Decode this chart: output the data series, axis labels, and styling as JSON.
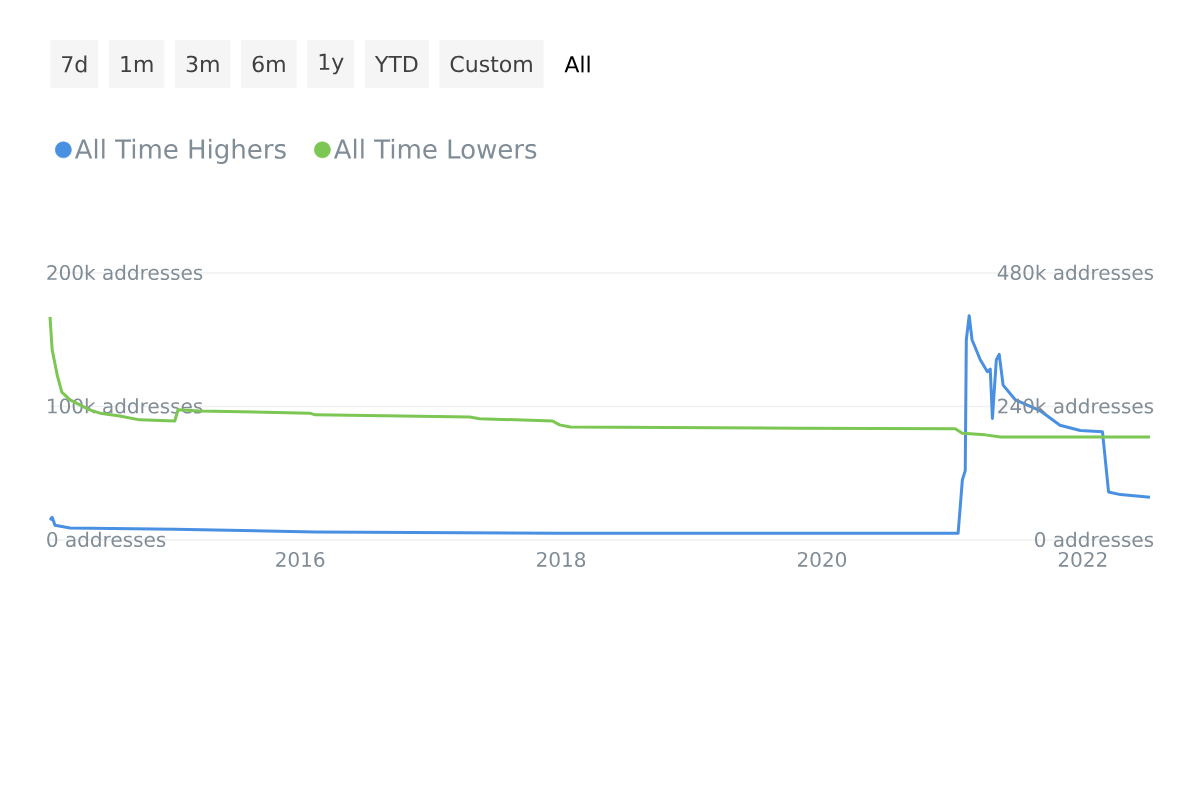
{
  "chart_data": {
    "type": "line",
    "annotations": [
      "7d",
      "1m",
      "3m",
      "6m",
      "1y",
      "YTD",
      "Custom",
      "All"
    ],
    "legend": "top left",
    "grid": "y",
    "xlim": [
      "2014-01-31",
      "2022-07-08"
    ],
    "xticks": [
      "2016",
      "2018",
      "2020",
      "2022"
    ],
    "ylim": [
      0,
      200000
    ],
    "yticks": [
      {
        "value": 0,
        "label": "0 addresses"
      },
      {
        "value": 100000,
        "label": "100k addresses"
      },
      {
        "value": 200000,
        "label": "200k addresses"
      }
    ],
    "y2lim": [
      0,
      480000
    ],
    "y2ticks": [
      {
        "value": 0,
        "label": "0 addresses"
      },
      {
        "value": 240000,
        "label": "240k addresses"
      },
      {
        "value": 480000,
        "label": "480k addresses"
      }
    ],
    "series": [
      {
        "name": "All Time Highers",
        "color": "#4a90e2",
        "x": [
          "2014-01-31",
          "2014-02-06",
          "2014-02-14",
          "2014-03-28",
          "2015-01-15",
          "2016-02-12",
          "2017-12-28",
          "2021-01-17",
          "2021-01-29",
          "2021-02-06",
          "2021-02-09",
          "2021-02-17",
          "2021-02-25",
          "2021-03-20",
          "2021-04-09",
          "2021-04-17",
          "2021-04-23",
          "2021-05-04",
          "2021-05-12",
          "2021-05-23",
          "2021-06-26",
          "2021-09-03",
          "2021-10-29",
          "2021-12-25",
          "2022-02-25",
          "2022-03-14",
          "2022-04-16",
          "2022-07-08"
        ],
        "values": [
          15000,
          17000,
          11000,
          9000,
          8000,
          6000,
          5000,
          5000,
          45000,
          52000,
          150000,
          168000,
          150000,
          135000,
          126000,
          128000,
          91000,
          135000,
          139000,
          116000,
          105000,
          97000,
          86000,
          82000,
          81000,
          36000,
          34000,
          32000
        ]
      },
      {
        "name": "All Time Lowers",
        "color": "#7cc653",
        "axis": "y2",
        "x": [
          "2014-01-31",
          "2014-02-06",
          "2014-02-20",
          "2014-03-05",
          "2014-03-28",
          "2014-05-22",
          "2014-06-20",
          "2014-08-14",
          "2014-10-09",
          "2015-01-15",
          "2015-01-24",
          "2015-03-26",
          "2016-01-28",
          "2016-02-12",
          "2017-04-20",
          "2017-05-18",
          "2017-12-08",
          "2017-12-28",
          "2018-01-27",
          "2019-11-01",
          "2021-01-09",
          "2021-01-29",
          "2021-04-03",
          "2021-05-15",
          "2022-07-08"
        ],
        "values": [
          401000,
          342000,
          297000,
          266000,
          252000,
          234000,
          228000,
          223000,
          216000,
          214000,
          234000,
          232000,
          228000,
          225000,
          221000,
          218000,
          214000,
          207000,
          203000,
          201000,
          200000,
          192000,
          189000,
          185000,
          185000
        ]
      }
    ]
  }
}
